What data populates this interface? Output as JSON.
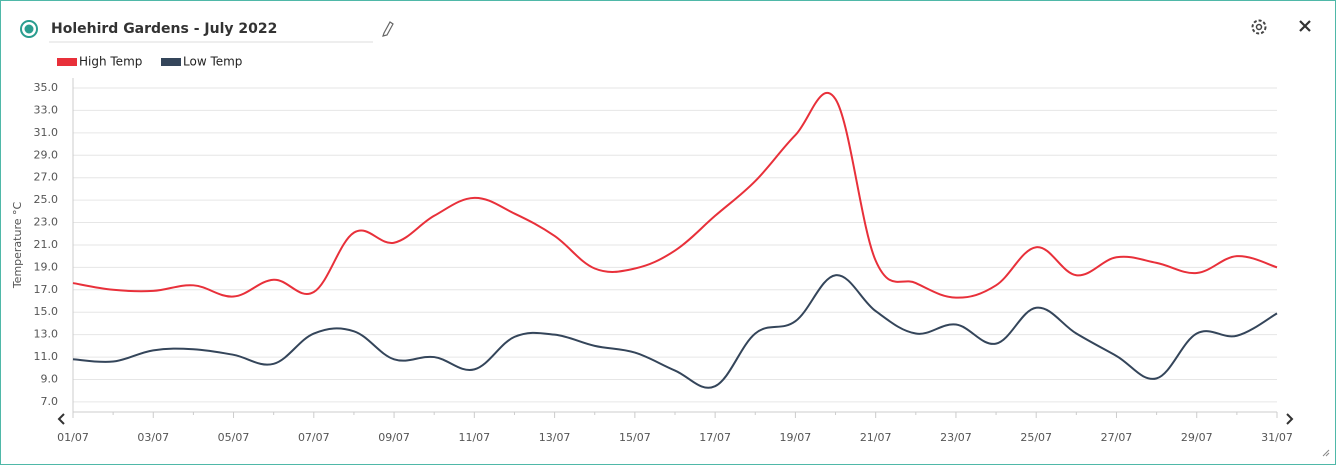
{
  "chart_data": {
    "type": "line",
    "title": "Holehird Gardens - July 2022",
    "ylabel": "Temperature °C",
    "categories": [
      "01/07",
      null,
      "03/07",
      null,
      "05/07",
      null,
      "07/07",
      null,
      "09/07",
      null,
      "11/07",
      null,
      "13/07",
      null,
      "15/07",
      null,
      "17/07",
      null,
      "19/07",
      null,
      "21/07",
      null,
      "23/07",
      null,
      "25/07",
      null,
      "27/07",
      null,
      "29/07",
      null,
      "31/07"
    ],
    "series": [
      {
        "name": "High Temp",
        "color": "#e8303a",
        "values": [
          17.6,
          17.0,
          16.9,
          17.4,
          16.4,
          17.9,
          16.8,
          22.1,
          21.2,
          23.6,
          25.2,
          23.8,
          21.8,
          18.9,
          18.9,
          20.5,
          23.6,
          26.7,
          30.8,
          34.0,
          19.6,
          17.6,
          16.3,
          17.4,
          20.8,
          18.3,
          19.9,
          19.4,
          18.5,
          20.0,
          19.0
        ]
      },
      {
        "name": "Low Temp",
        "color": "#34455a",
        "values": [
          10.8,
          10.6,
          11.6,
          11.7,
          11.2,
          10.4,
          13.1,
          13.3,
          10.8,
          11.0,
          9.9,
          12.8,
          13.0,
          12.0,
          11.4,
          9.8,
          8.4,
          13.1,
          14.2,
          18.3,
          15.1,
          13.1,
          13.9,
          12.2,
          15.4,
          13.1,
          11.1,
          9.1,
          13.1,
          12.9,
          14.9
        ]
      }
    ],
    "ylim": [
      6.1,
      35
    ],
    "yticks": [
      {
        "value": 7,
        "label": "7.0"
      },
      {
        "value": 9,
        "label": "9.0"
      },
      {
        "value": 11,
        "label": "11.0"
      },
      {
        "value": 13,
        "label": "13.0"
      },
      {
        "value": 15,
        "label": "15.0"
      },
      {
        "value": 17,
        "label": "17.0"
      },
      {
        "value": 19,
        "label": "19.0"
      },
      {
        "value": 21,
        "label": "21.0"
      },
      {
        "value": 23,
        "label": "23.0"
      },
      {
        "value": 25,
        "label": "25.0"
      },
      {
        "value": 27,
        "label": "27.0"
      },
      {
        "value": 29,
        "label": "29.0"
      },
      {
        "value": 31,
        "label": "31.0"
      },
      {
        "value": 33,
        "label": "33.0"
      },
      {
        "value": 35,
        "label": "35.0"
      }
    ],
    "grid": true,
    "legend": "top-left"
  }
}
